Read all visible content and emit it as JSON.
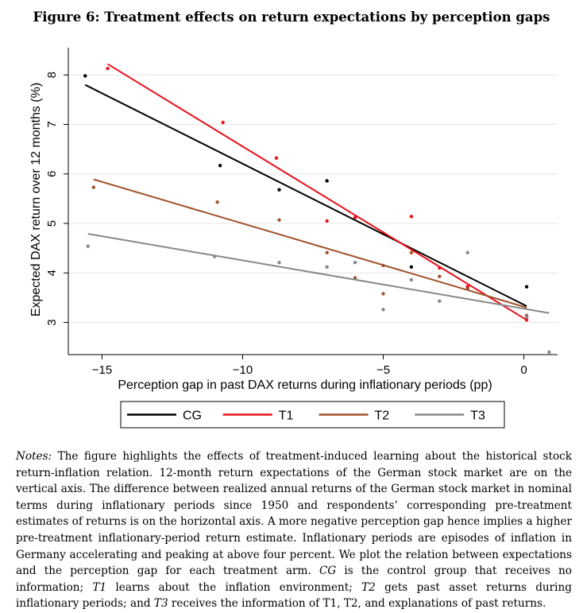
{
  "figure_title": "Figure 6: Treatment effects on return expectations by perception gaps",
  "chart_data": {
    "type": "scatter",
    "xlabel": "Perception gap in past DAX returns during inflationary periods (pp)",
    "ylabel": "Expected DAX return over 12 months (%)",
    "xlim": [
      -16.2,
      1.2
    ],
    "ylim": [
      2.35,
      8.55
    ],
    "xticks": [
      -15,
      -10,
      -5,
      0
    ],
    "yticks": [
      3,
      4,
      5,
      6,
      7,
      8
    ],
    "grid": true,
    "legend_position": "bottom",
    "series": [
      {
        "name": "CG",
        "color": "#000000",
        "points": [
          [
            -15.6,
            7.98
          ],
          [
            -10.8,
            6.17
          ],
          [
            -8.7,
            5.68
          ],
          [
            -7.0,
            5.86
          ],
          [
            -5.0,
            4.8
          ],
          [
            -4.0,
            4.12
          ],
          [
            -2.0,
            3.72
          ],
          [
            0.1,
            3.72
          ]
        ],
        "fit": [
          [
            -15.6,
            7.8
          ],
          [
            0.1,
            3.33
          ]
        ]
      },
      {
        "name": "T1",
        "color": "#e8101b",
        "points": [
          [
            -14.8,
            8.13
          ],
          [
            -10.7,
            7.04
          ],
          [
            -8.8,
            6.32
          ],
          [
            -7.0,
            5.05
          ],
          [
            -6.0,
            5.12
          ],
          [
            -5.0,
            4.8
          ],
          [
            -4.0,
            5.14
          ],
          [
            -3.0,
            4.1
          ],
          [
            -2.0,
            3.72
          ],
          [
            0.1,
            3.05
          ]
        ],
        "fit": [
          [
            -14.8,
            8.22
          ],
          [
            0.1,
            3.05
          ]
        ]
      },
      {
        "name": "T2",
        "color": "#a0522d",
        "points": [
          [
            -15.3,
            5.73
          ],
          [
            -10.9,
            5.43
          ],
          [
            -8.7,
            5.07
          ],
          [
            -7.0,
            4.41
          ],
          [
            -6.0,
            3.9
          ],
          [
            -5.0,
            3.58
          ],
          [
            -5.0,
            4.15
          ],
          [
            -4.0,
            4.41
          ],
          [
            -3.0,
            3.93
          ],
          [
            -2.0,
            3.68
          ],
          [
            0.1,
            3.14
          ]
        ],
        "fit": [
          [
            -15.3,
            5.89
          ],
          [
            0.1,
            3.3
          ]
        ]
      },
      {
        "name": "T3",
        "color": "#888888",
        "points": [
          [
            -15.5,
            4.54
          ],
          [
            -11.0,
            4.33
          ],
          [
            -8.7,
            4.21
          ],
          [
            -7.0,
            4.12
          ],
          [
            -6.0,
            4.21
          ],
          [
            -5.0,
            3.26
          ],
          [
            -4.0,
            3.86
          ],
          [
            -3.0,
            3.43
          ],
          [
            -2.0,
            4.41
          ],
          [
            0.1,
            3.11
          ],
          [
            0.9,
            2.4
          ]
        ],
        "fit": [
          [
            -15.5,
            4.79
          ],
          [
            0.9,
            3.19
          ]
        ]
      }
    ]
  },
  "notes": {
    "label": "Notes:",
    "part1": " The figure highlights the effects of treatment-induced learning about the historical stock return-inflation relation. 12-month return expectations of the German stock market are on the vertical axis. The difference between realized annual returns of the German stock market in nominal terms during inflationary periods since 1950 and respondents’ corresponding pre-treatment estimates of returns is on the horizontal axis. A more negative perception gap hence implies a higher pre-treatment inflationary-period return estimate. Inflationary periods are episodes of inflation in Germany accelerating and peaking at above four percent. We plot the relation between expectations and the perception gap for each treatment arm. ",
    "cg": "CG",
    "part2": " is the control group that receives no information; ",
    "t1": "T1",
    "part3": " learns about the inflation environment; ",
    "t2": "T2",
    "part4": " gets past asset returns during inflationary periods; and ",
    "t3": "T3",
    "part5": " receives the information of T1, T2, and explanations of past returns."
  }
}
